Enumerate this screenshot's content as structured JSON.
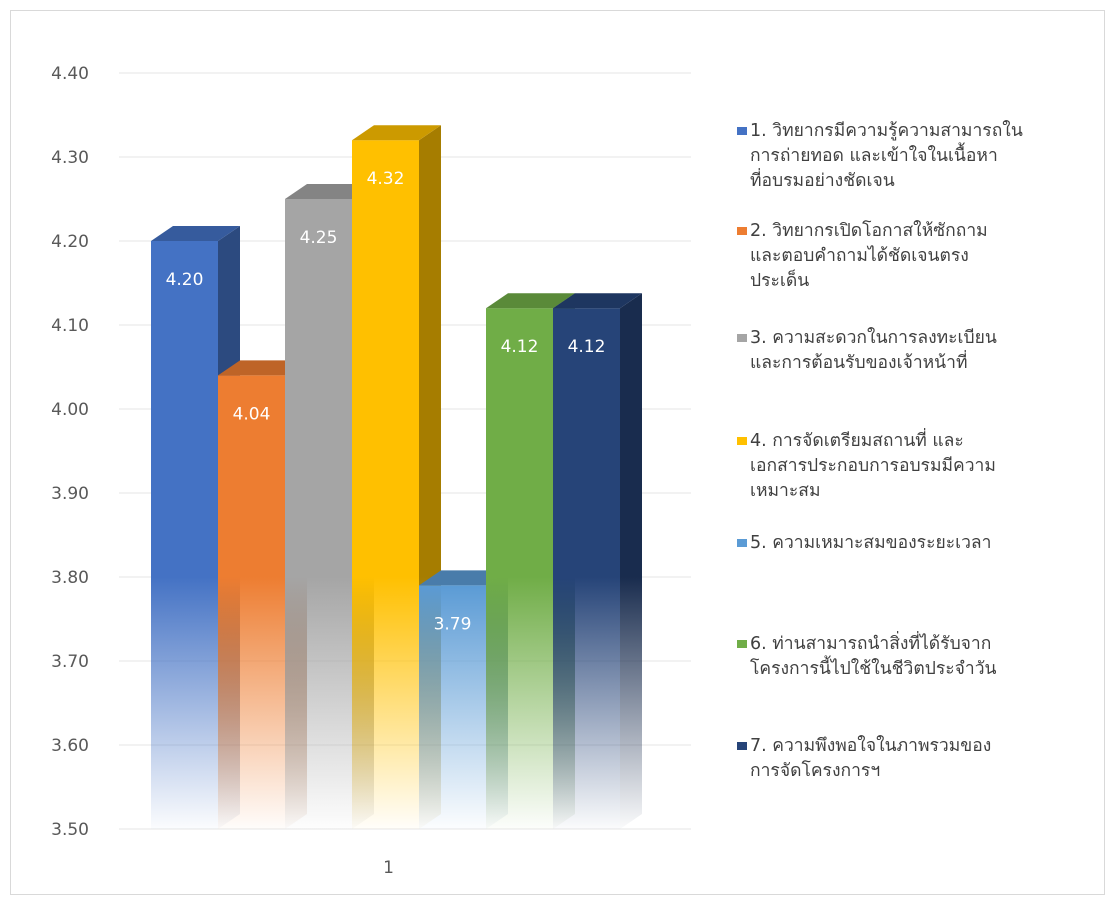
{
  "chart_data": {
    "type": "bar",
    "categories": [
      "1"
    ],
    "ylim": [
      3.5,
      4.4
    ],
    "yticks": [
      "3.50",
      "3.60",
      "3.70",
      "3.80",
      "3.90",
      "4.00",
      "4.10",
      "4.20",
      "4.30",
      "4.40"
    ],
    "grid": true,
    "legend_position": "right",
    "series": [
      {
        "name": "1. วิทยากรมีความรู้ความสามารถใน\nการถ่ายทอด  และเข้าใจในเนื้อหา\nที่อบรมอย่างชัดเจน",
        "values": [
          4.2
        ],
        "label": "4.20",
        "color": "#4472C4"
      },
      {
        "name": "2. วิทยากรเปิดโอกาสให้ซักถาม\nและตอบคำถามได้ชัดเจนตรง\nประเด็น",
        "values": [
          4.04
        ],
        "label": "4.04",
        "color": "#ED7D31"
      },
      {
        "name": "3. ความสะดวกในการลงทะเบียน\nและการต้อนรับของเจ้าหน้าที่",
        "values": [
          4.25
        ],
        "label": "4.25",
        "color": "#A5A5A5"
      },
      {
        "name": "4. การจัดเตรียมสถานที่  และ\nเอกสารประกอบการอบรมมีความ\nเหมาะสม",
        "values": [
          4.32
        ],
        "label": "4.32",
        "color": "#FFC000"
      },
      {
        "name": "5. ความเหมาะสมของระยะเวลา",
        "values": [
          3.79
        ],
        "label": "3.79",
        "color": "#5B9BD5"
      },
      {
        "name": "6. ท่านสามารถนำสิ่งที่ได้รับจาก\nโครงการนี้ไปใช้ในชีวิตประจำวัน",
        "values": [
          4.12
        ],
        "label": "4.12",
        "color": "#70AD47"
      },
      {
        "name": "7. ความพึงพอใจในภาพรวมของ\nการจัดโครงการฯ",
        "values": [
          4.12
        ],
        "label": "4.12",
        "color": "#264478"
      }
    ]
  }
}
